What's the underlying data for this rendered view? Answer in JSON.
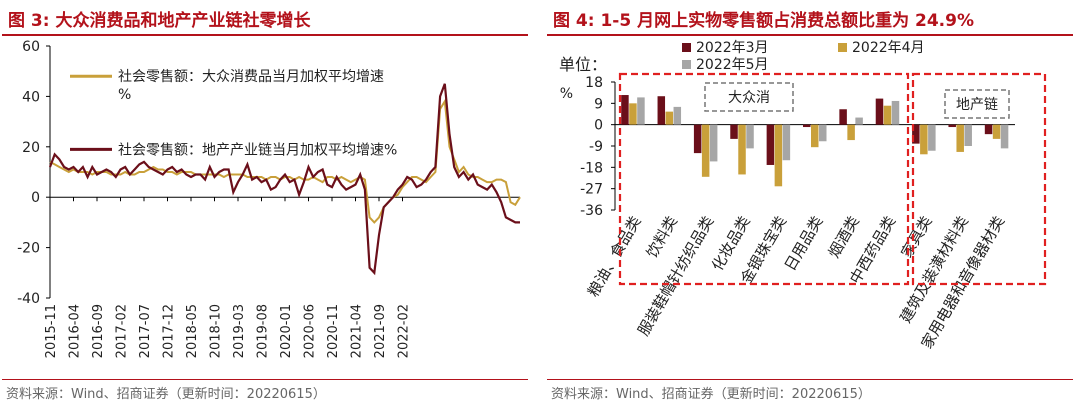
{
  "panels": [
    {
      "title": "图 3:  大众消费品和地产产业链社零增长",
      "source": "资料来源：Wind、招商证券（更新时间：20220615）"
    },
    {
      "title": "图 4:  1-5 月网上实物零售额占消费总额比重为 24.9%",
      "source": "资料来源：Wind、招商证券（更新时间：20220615）"
    }
  ],
  "chart_data": [
    {
      "type": "line",
      "title": "",
      "xlabel": "",
      "ylabel": "",
      "ylim": [
        -40,
        60
      ],
      "yticks": [
        -40,
        -20,
        0,
        20,
        40,
        60
      ],
      "xtick_labels": [
        "2015-11",
        "2016-04",
        "2016-09",
        "2017-02",
        "2017-07",
        "2017-12",
        "2018-05",
        "2018-10",
        "2019-03",
        "2019-08",
        "2020-01",
        "2020-06",
        "2020-11",
        "2021-04",
        "2021-09",
        "2022-02"
      ],
      "grid": false,
      "legend": "upper-left",
      "x_start": "2015-11",
      "x_end": "2022-05",
      "series": [
        {
          "name": "社会零售额：大众消费品当月加权平均增速%",
          "color": "#c9a03a",
          "values": [
            14,
            13,
            12,
            11,
            10,
            11,
            10,
            10,
            10,
            9,
            10,
            10,
            10,
            9,
            9,
            9,
            10,
            9,
            9,
            10,
            10,
            11,
            12,
            11,
            11,
            10,
            10,
            9,
            10,
            10,
            10,
            9,
            9,
            9,
            9,
            9,
            9,
            8,
            9,
            9,
            9,
            9,
            8,
            8,
            8,
            8,
            7,
            8,
            8,
            7,
            8,
            8,
            7,
            8,
            7,
            7,
            8,
            7,
            6,
            8,
            8,
            7,
            8,
            7,
            6,
            7,
            8,
            7,
            -8,
            -10,
            -8,
            -4,
            -2,
            0,
            1,
            4,
            6,
            8,
            8,
            7,
            6,
            8,
            10,
            35,
            38,
            20,
            15,
            10,
            12,
            9,
            8,
            8,
            7,
            6,
            6,
            7,
            7,
            6,
            -2,
            -3,
            0
          ]
        },
        {
          "name": "社会零售额：地产产业链当月加权平均增速%",
          "color": "#6b0f1a",
          "values": [
            12,
            17,
            15,
            12,
            11,
            12,
            10,
            12,
            8,
            12,
            9,
            10,
            11,
            10,
            8,
            11,
            12,
            9,
            11,
            13,
            14,
            12,
            11,
            10,
            9,
            11,
            12,
            10,
            11,
            9,
            8,
            9,
            9,
            7,
            12,
            8,
            10,
            11,
            11,
            2,
            6,
            9,
            13,
            7,
            8,
            6,
            7,
            3,
            4,
            7,
            9,
            6,
            7,
            1,
            6,
            12,
            8,
            10,
            11,
            5,
            4,
            8,
            5,
            3,
            4,
            5,
            9,
            3,
            -28,
            -30,
            -15,
            -4,
            -2,
            0,
            3,
            5,
            8,
            7,
            4,
            5,
            7,
            10,
            12,
            40,
            45,
            25,
            12,
            8,
            10,
            7,
            9,
            5,
            4,
            3,
            5,
            2,
            -2,
            -8,
            -9,
            -10,
            -10
          ]
        }
      ]
    },
    {
      "type": "bar",
      "title": "",
      "ylabel": "单位：%",
      "ylim": [
        -36,
        18
      ],
      "yticks": [
        18,
        9,
        0,
        -9,
        -18,
        -27,
        -36
      ],
      "grid": false,
      "legend": "top",
      "categories": [
        "粮油、食品类",
        "饮料类",
        "服装鞋帽针纺织品类",
        "化妆品类",
        "金银珠宝类",
        "日用品类",
        "烟酒类",
        "中西药品类",
        "家具类",
        "建筑及装潢材料类",
        "家用电器和音像器材类"
      ],
      "series": [
        {
          "name": "2022年3月",
          "color": "#6b0f1a",
          "values": [
            12.5,
            12.0,
            -12.0,
            -6.0,
            -17.0,
            -1.0,
            6.5,
            11.0,
            -8.0,
            -1.0,
            -4.0
          ]
        },
        {
          "name": "2022年4月",
          "color": "#c9a03a",
          "values": [
            9.0,
            5.5,
            -22.0,
            -21.0,
            -26.0,
            -9.5,
            -6.5,
            8.0,
            -12.5,
            -11.5,
            -6.0
          ]
        },
        {
          "name": "2022年5月",
          "color": "#a6a6a6",
          "values": [
            11.5,
            7.5,
            -15.5,
            -10.0,
            -15.0,
            -7.0,
            3.0,
            10.0,
            -11.0,
            -9.0,
            -10.0
          ]
        }
      ],
      "groups": [
        {
          "label": "大众消",
          "categories": [
            "粮油、食品类",
            "饮料类",
            "服装鞋帽针纺织品类",
            "化妆品类",
            "金银珠宝类",
            "日用品类",
            "烟酒类",
            "中西药品类"
          ]
        },
        {
          "label": "地产链",
          "categories": [
            "家具类",
            "建筑及装潢材料类",
            "家用电器和音像器材类"
          ]
        }
      ]
    }
  ]
}
